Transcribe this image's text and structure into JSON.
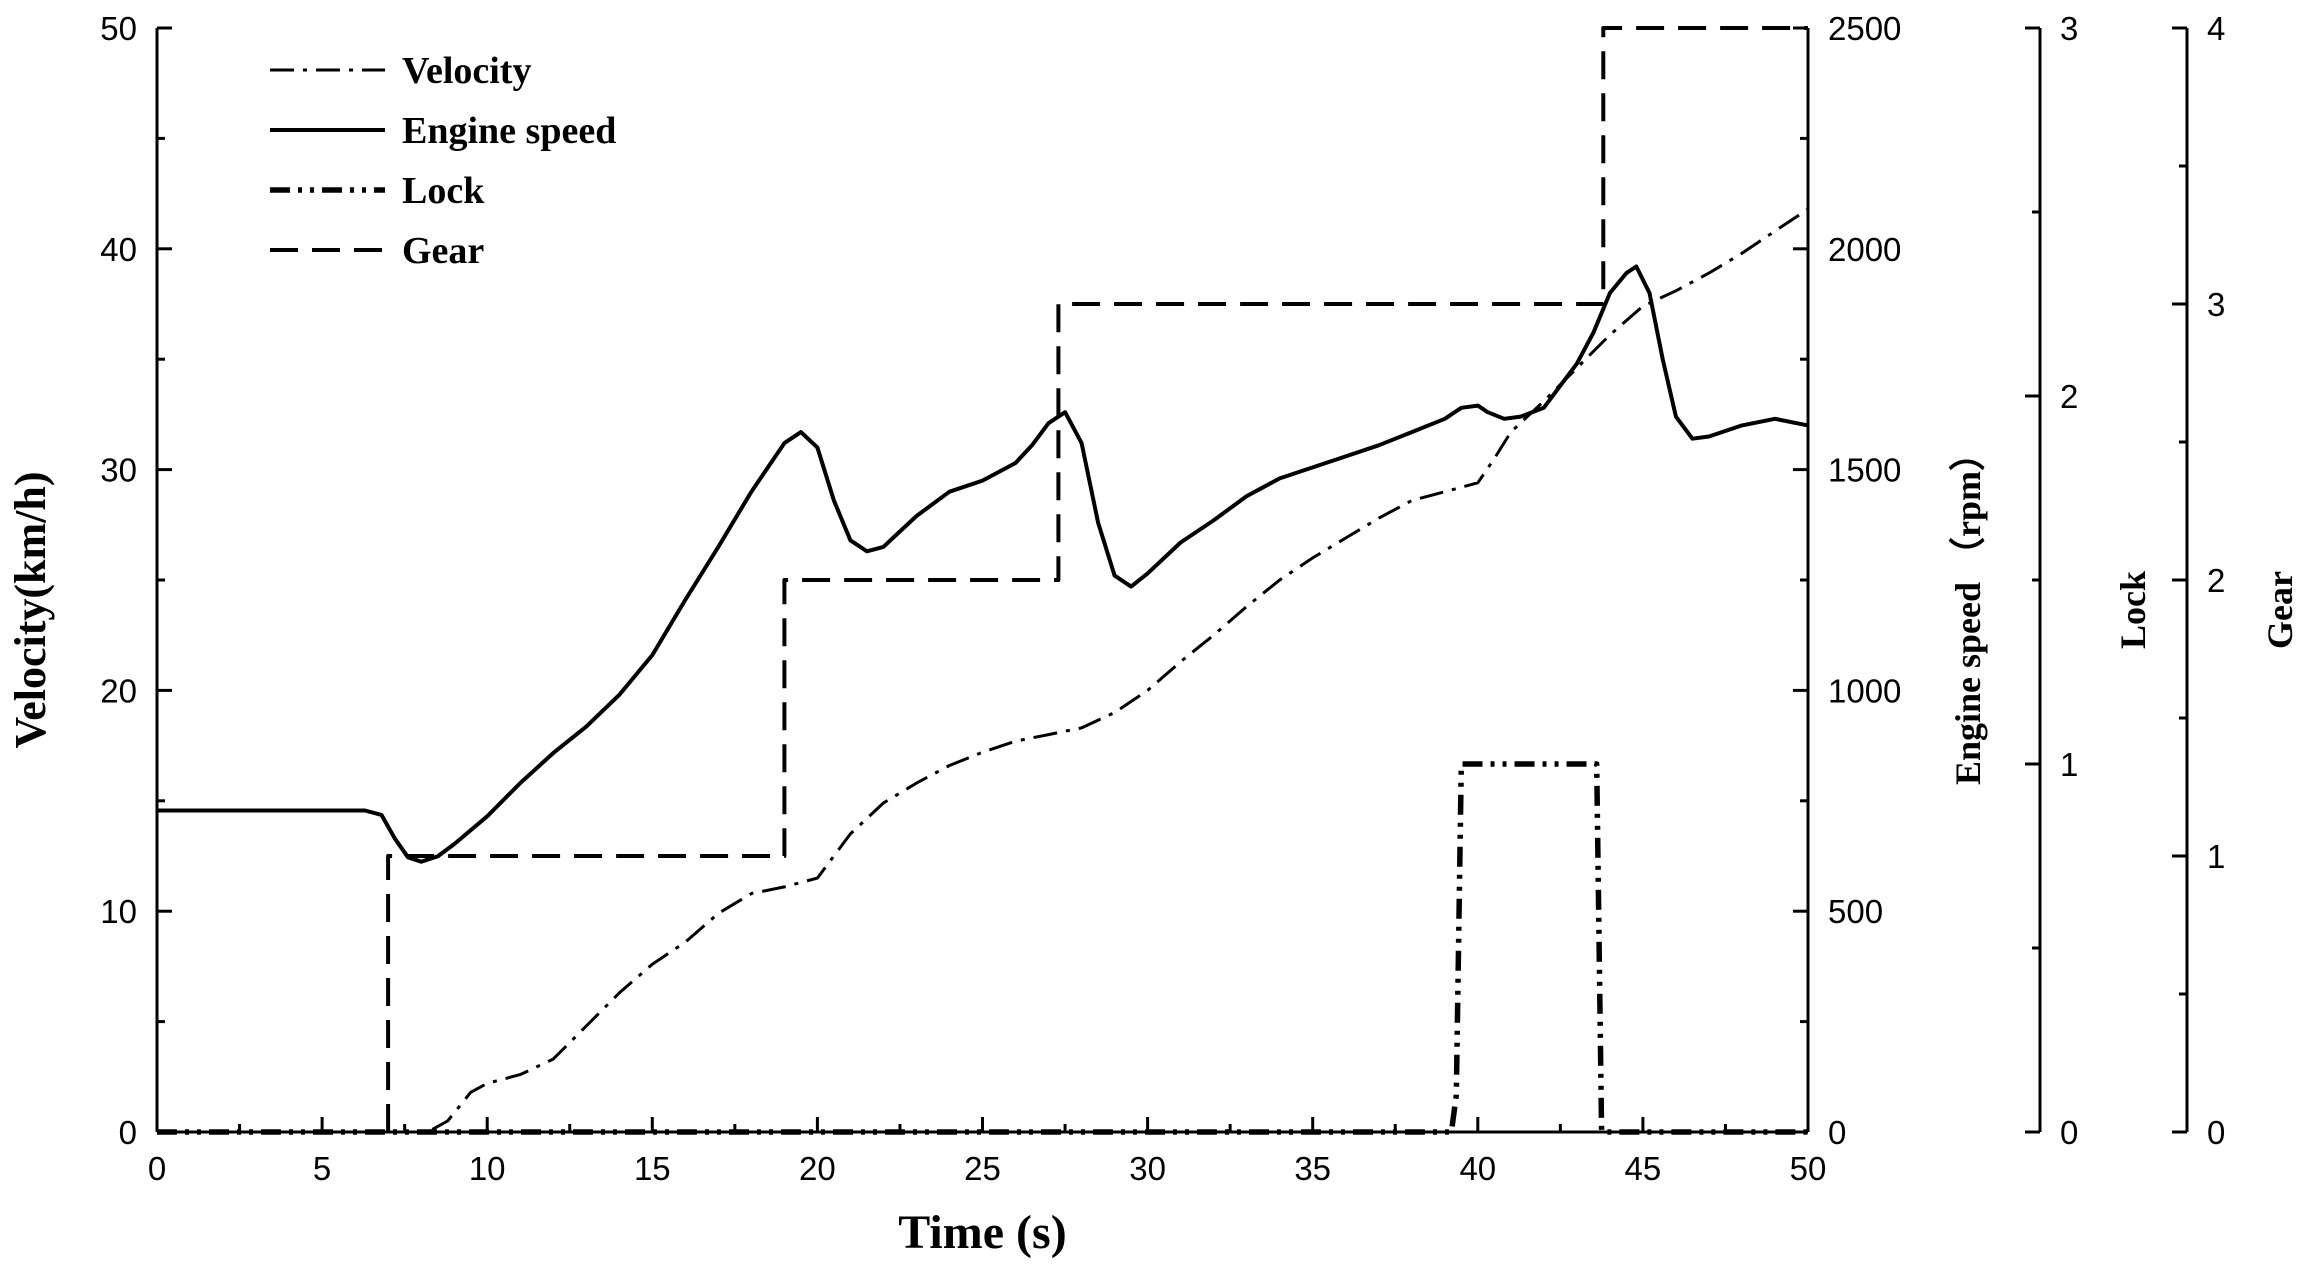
{
  "chart_data": {
    "type": "line",
    "title": "",
    "xlabel": "Time (s)",
    "xlim": [
      0,
      50
    ],
    "x_ticks": [
      0,
      5,
      10,
      15,
      20,
      25,
      30,
      35,
      40,
      45,
      50
    ],
    "grid": false,
    "legend_position": "top-left",
    "axes": [
      {
        "id": "velocity",
        "label": "Velocity(km/h)",
        "side": "left",
        "range": [
          0,
          50
        ],
        "ticks": [
          0,
          10,
          20,
          30,
          40,
          50
        ]
      },
      {
        "id": "engine",
        "label": "Engine speed （rpm）",
        "side": "right",
        "range": [
          0,
          2500
        ],
        "ticks": [
          0,
          500,
          1000,
          1500,
          2000,
          2500
        ]
      },
      {
        "id": "lock",
        "label": "Lock",
        "side": "right",
        "range": [
          0,
          3
        ],
        "ticks": [
          0,
          1,
          2,
          3
        ]
      },
      {
        "id": "gear",
        "label": "Gear",
        "side": "right",
        "range": [
          0,
          4
        ],
        "ticks": [
          0,
          1,
          2,
          3,
          4
        ]
      }
    ],
    "series": [
      {
        "name": "Velocity",
        "axis": "velocity",
        "style": "dash-dot",
        "x": [
          0,
          7.5,
          8.2,
          8.8,
          9.5,
          10,
          11,
          12,
          13,
          14,
          15,
          16,
          17,
          18,
          19,
          20,
          21,
          22,
          23,
          24,
          25,
          26,
          27,
          28,
          29,
          30,
          31,
          32,
          33,
          34,
          35,
          36,
          37,
          38,
          39,
          40,
          40.5,
          41,
          42,
          43,
          44,
          45,
          46,
          47,
          48,
          49,
          50
        ],
        "values": [
          0,
          0,
          0,
          0.5,
          1.8,
          2.2,
          2.6,
          3.3,
          4.8,
          6.3,
          7.6,
          8.6,
          9.9,
          10.8,
          11.1,
          11.5,
          13.5,
          14.9,
          15.8,
          16.6,
          17.2,
          17.7,
          18.0,
          18.3,
          19.0,
          20.0,
          21.3,
          22.5,
          23.8,
          25.0,
          26.0,
          26.9,
          27.8,
          28.6,
          29.0,
          29.4,
          30.5,
          31.7,
          33.1,
          34.6,
          36.1,
          37.4,
          38.1,
          38.9,
          39.8,
          40.8,
          41.8
        ]
      },
      {
        "name": "Engine speed",
        "axis": "engine",
        "style": "solid",
        "x": [
          0,
          6.3,
          6.8,
          7.2,
          7.6,
          8.0,
          8.5,
          9,
          10,
          11,
          12,
          13,
          14,
          15,
          16,
          17,
          18,
          19,
          19.5,
          20,
          20.5,
          21,
          21.5,
          22,
          23,
          24,
          25,
          26,
          26.5,
          27,
          27.5,
          28,
          28.5,
          29,
          29.5,
          30,
          31,
          32,
          33,
          34,
          35,
          36,
          37,
          38,
          39,
          39.5,
          40,
          40.3,
          40.8,
          41.3,
          42,
          42.5,
          43,
          43.5,
          44,
          44.5,
          44.8,
          45.2,
          45.6,
          46,
          46.5,
          47,
          48,
          49,
          50
        ],
        "values": [
          728,
          728,
          718,
          665,
          622,
          612,
          624,
          652,
          715,
          790,
          858,
          918,
          990,
          1080,
          1205,
          1325,
          1450,
          1560,
          1585,
          1550,
          1430,
          1340,
          1315,
          1325,
          1395,
          1450,
          1475,
          1515,
          1555,
          1605,
          1630,
          1560,
          1380,
          1260,
          1235,
          1265,
          1335,
          1385,
          1440,
          1480,
          1505,
          1530,
          1555,
          1585,
          1615,
          1640,
          1645,
          1630,
          1615,
          1620,
          1640,
          1690,
          1740,
          1810,
          1900,
          1945,
          1960,
          1900,
          1750,
          1620,
          1570,
          1575,
          1600,
          1615,
          1600
        ]
      },
      {
        "name": "Lock",
        "axis": "lock",
        "style": "dash-dot-dot",
        "x": [
          0,
          39.2,
          39.35,
          39.5,
          43.6,
          43.75,
          43.9,
          50
        ],
        "values": [
          0,
          0,
          0.1,
          1,
          1,
          0,
          0,
          0
        ]
      },
      {
        "name": "Gear",
        "axis": "gear",
        "style": "dashed",
        "x": [
          7,
          7,
          19,
          19,
          27.3,
          27.3,
          43.8,
          43.8,
          50
        ],
        "values": [
          0,
          1,
          1,
          2,
          2,
          3,
          3,
          4,
          4
        ]
      }
    ]
  }
}
